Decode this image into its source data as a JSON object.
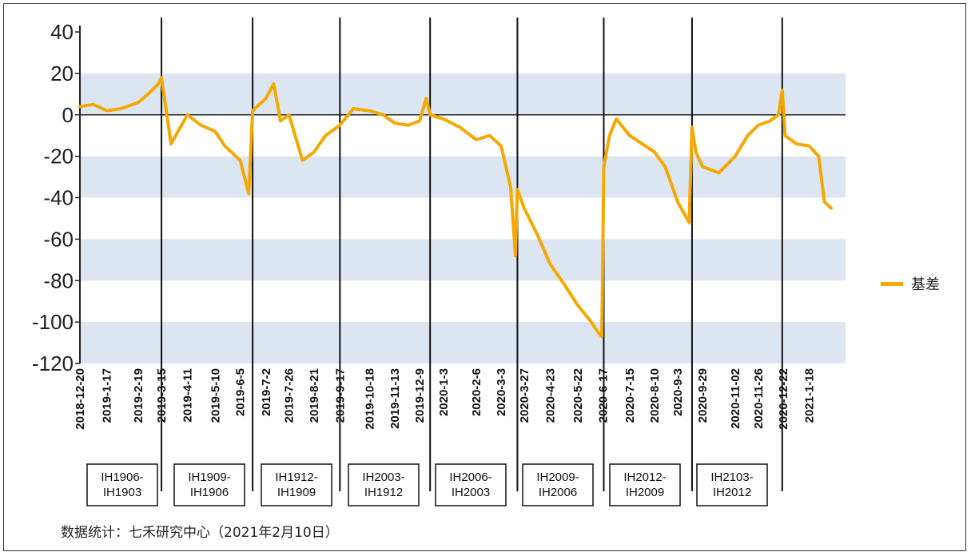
{
  "chart_data": {
    "type": "line",
    "title": "",
    "xlabel": "",
    "ylabel": "",
    "ylim": [
      -120,
      40
    ],
    "yticks": [
      40,
      20,
      0,
      -20,
      -40,
      -60,
      -80,
      -100,
      -120
    ],
    "grid": "alternating horizontal bands",
    "legend_position": "right",
    "x_tick_labels": [
      "2018-12-20",
      "2019-1-17",
      "2019-2-19",
      "2019-3-15",
      "2019-4-11",
      "2019-5-10",
      "2019-6-5",
      "2019-7-2",
      "2019-7-26",
      "2019-8-21",
      "2019-9-17",
      "2019-10-18",
      "2019-11-13",
      "2019-12-9",
      "2020-1-3",
      "2020-2-6",
      "2020-3-3",
      "2020-3-27",
      "2020-4-23",
      "2020-5-22",
      "2020-6-17",
      "2020-7-15",
      "2020-8-10",
      "2020-9-3",
      "2020-9-29",
      "2020-11-02",
      "2020-11-26",
      "2020-12-22",
      "2021-1-18"
    ],
    "series": [
      {
        "name": "基差",
        "color": "#F5A800",
        "x": [
          "2018-12-20",
          "2019-1-3",
          "2019-1-17",
          "2019-2-1",
          "2019-2-19",
          "2019-3-1",
          "2019-3-12",
          "2019-3-15",
          "2019-3-25",
          "2019-4-11",
          "2019-4-25",
          "2019-5-10",
          "2019-5-20",
          "2019-6-5",
          "2019-6-14",
          "2019-6-18",
          "2019-7-2",
          "2019-7-10",
          "2019-7-17",
          "2019-7-26",
          "2019-8-9",
          "2019-8-21",
          "2019-9-2",
          "2019-9-17",
          "2019-10-1",
          "2019-10-18",
          "2019-11-1",
          "2019-11-13",
          "2019-11-27",
          "2019-12-9",
          "2019-12-16",
          "2019-12-20",
          "2020-1-3",
          "2020-1-20",
          "2020-2-6",
          "2020-2-20",
          "2020-3-3",
          "2020-3-13",
          "2020-3-18",
          "2020-3-20",
          "2020-3-27",
          "2020-4-10",
          "2020-4-23",
          "2020-5-8",
          "2020-5-22",
          "2020-6-5",
          "2020-6-12",
          "2020-6-16",
          "2020-6-18",
          "2020-6-24",
          "2020-7-1",
          "2020-7-15",
          "2020-7-28",
          "2020-8-10",
          "2020-8-21",
          "2020-9-3",
          "2020-9-15",
          "2020-9-18",
          "2020-9-22",
          "2020-9-29",
          "2020-10-16",
          "2020-11-02",
          "2020-11-15",
          "2020-11-26",
          "2020-12-8",
          "2020-12-17",
          "2020-12-21",
          "2020-12-24",
          "2021-1-5",
          "2021-1-18",
          "2021-1-28",
          "2021-2-3",
          "2021-2-10"
        ],
        "values": [
          4,
          5,
          2,
          3,
          6,
          10,
          15,
          18,
          -14,
          0,
          -5,
          -8,
          -15,
          -22,
          -38,
          2,
          8,
          15,
          -3,
          0,
          -22,
          -18,
          -10,
          -5,
          3,
          2,
          0,
          -4,
          -5,
          -3,
          8,
          0,
          -2,
          -6,
          -12,
          -10,
          -15,
          -35,
          -68,
          -36,
          -45,
          -58,
          -72,
          -82,
          -92,
          -100,
          -105,
          -107,
          -25,
          -10,
          -2,
          -10,
          -14,
          -18,
          -25,
          -42,
          -52,
          -6,
          -18,
          -25,
          -28,
          -20,
          -10,
          -5,
          -3,
          0,
          12,
          -10,
          -14,
          -15,
          -20,
          -42,
          -45
        ]
      }
    ],
    "contracts": [
      {
        "line1": "IH1906-",
        "line2": "IH1903"
      },
      {
        "line1": "IH1909-",
        "line2": "IH1906"
      },
      {
        "line1": "IH1912-",
        "line2": "IH1909"
      },
      {
        "line1": "IH2003-",
        "line2": "IH1912"
      },
      {
        "line1": "IH2006-",
        "line2": "IH2003"
      },
      {
        "line1": "IH2009-",
        "line2": "IH2006"
      },
      {
        "line1": "IH2012-",
        "line2": "IH2009"
      },
      {
        "line1": "IH2103-",
        "line2": "IH2012"
      }
    ]
  },
  "legend": {
    "label": "基差"
  },
  "footnote": "数据统计：七禾研究中心（2021年2月10日）"
}
